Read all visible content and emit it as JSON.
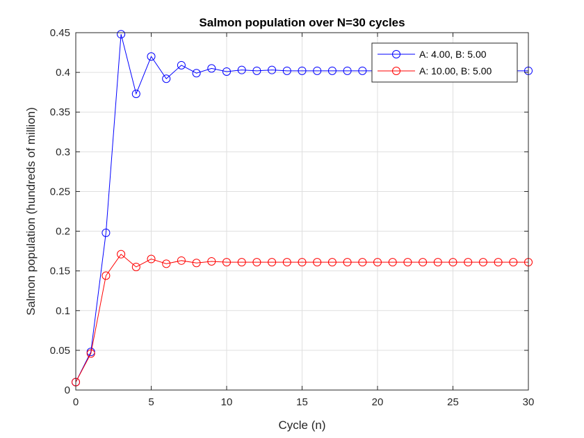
{
  "chart_data": {
    "type": "line",
    "title": "Salmon population over N=30 cycles",
    "xlabel": "Cycle (n)",
    "ylabel": "Salmon population (hundreds of million)",
    "xlim": [
      0,
      30
    ],
    "ylim": [
      0,
      0.45
    ],
    "xticks": [
      0,
      5,
      10,
      15,
      20,
      25,
      30
    ],
    "xtick_labels": [
      "0",
      "5",
      "10",
      "15",
      "20",
      "25",
      "30"
    ],
    "yticks": [
      0,
      0.05,
      0.1,
      0.15,
      0.2,
      0.25,
      0.3,
      0.35,
      0.4,
      0.45
    ],
    "ytick_labels": [
      "0",
      "0.05",
      "0.1",
      "0.15",
      "0.2",
      "0.25",
      "0.3",
      "0.35",
      "0.4",
      "0.45"
    ],
    "grid": true,
    "legend_position": "top-right",
    "x": [
      0,
      1,
      2,
      3,
      4,
      5,
      6,
      7,
      8,
      9,
      10,
      11,
      12,
      13,
      14,
      15,
      16,
      17,
      18,
      19,
      20,
      21,
      22,
      23,
      24,
      25,
      26,
      27,
      28,
      29,
      30
    ],
    "series": [
      {
        "name": "A: 4.00, B: 5.00",
        "color": "#0000ff",
        "values": [
          0.01,
          0.048,
          0.198,
          0.448,
          0.373,
          0.42,
          0.392,
          0.409,
          0.399,
          0.405,
          0.401,
          0.403,
          0.402,
          0.403,
          0.402,
          0.402,
          0.402,
          0.402,
          0.402,
          0.402,
          0.402,
          0.402,
          0.402,
          0.402,
          0.402,
          0.402,
          0.402,
          0.402,
          0.402,
          0.402,
          0.402
        ]
      },
      {
        "name": "A: 10.00, B: 5.00",
        "color": "#ff0000",
        "values": [
          0.01,
          0.046,
          0.144,
          0.171,
          0.155,
          0.165,
          0.159,
          0.163,
          0.16,
          0.162,
          0.161,
          0.161,
          0.161,
          0.161,
          0.161,
          0.161,
          0.161,
          0.161,
          0.161,
          0.161,
          0.161,
          0.161,
          0.161,
          0.161,
          0.161,
          0.161,
          0.161,
          0.161,
          0.161,
          0.161,
          0.161
        ]
      }
    ]
  }
}
